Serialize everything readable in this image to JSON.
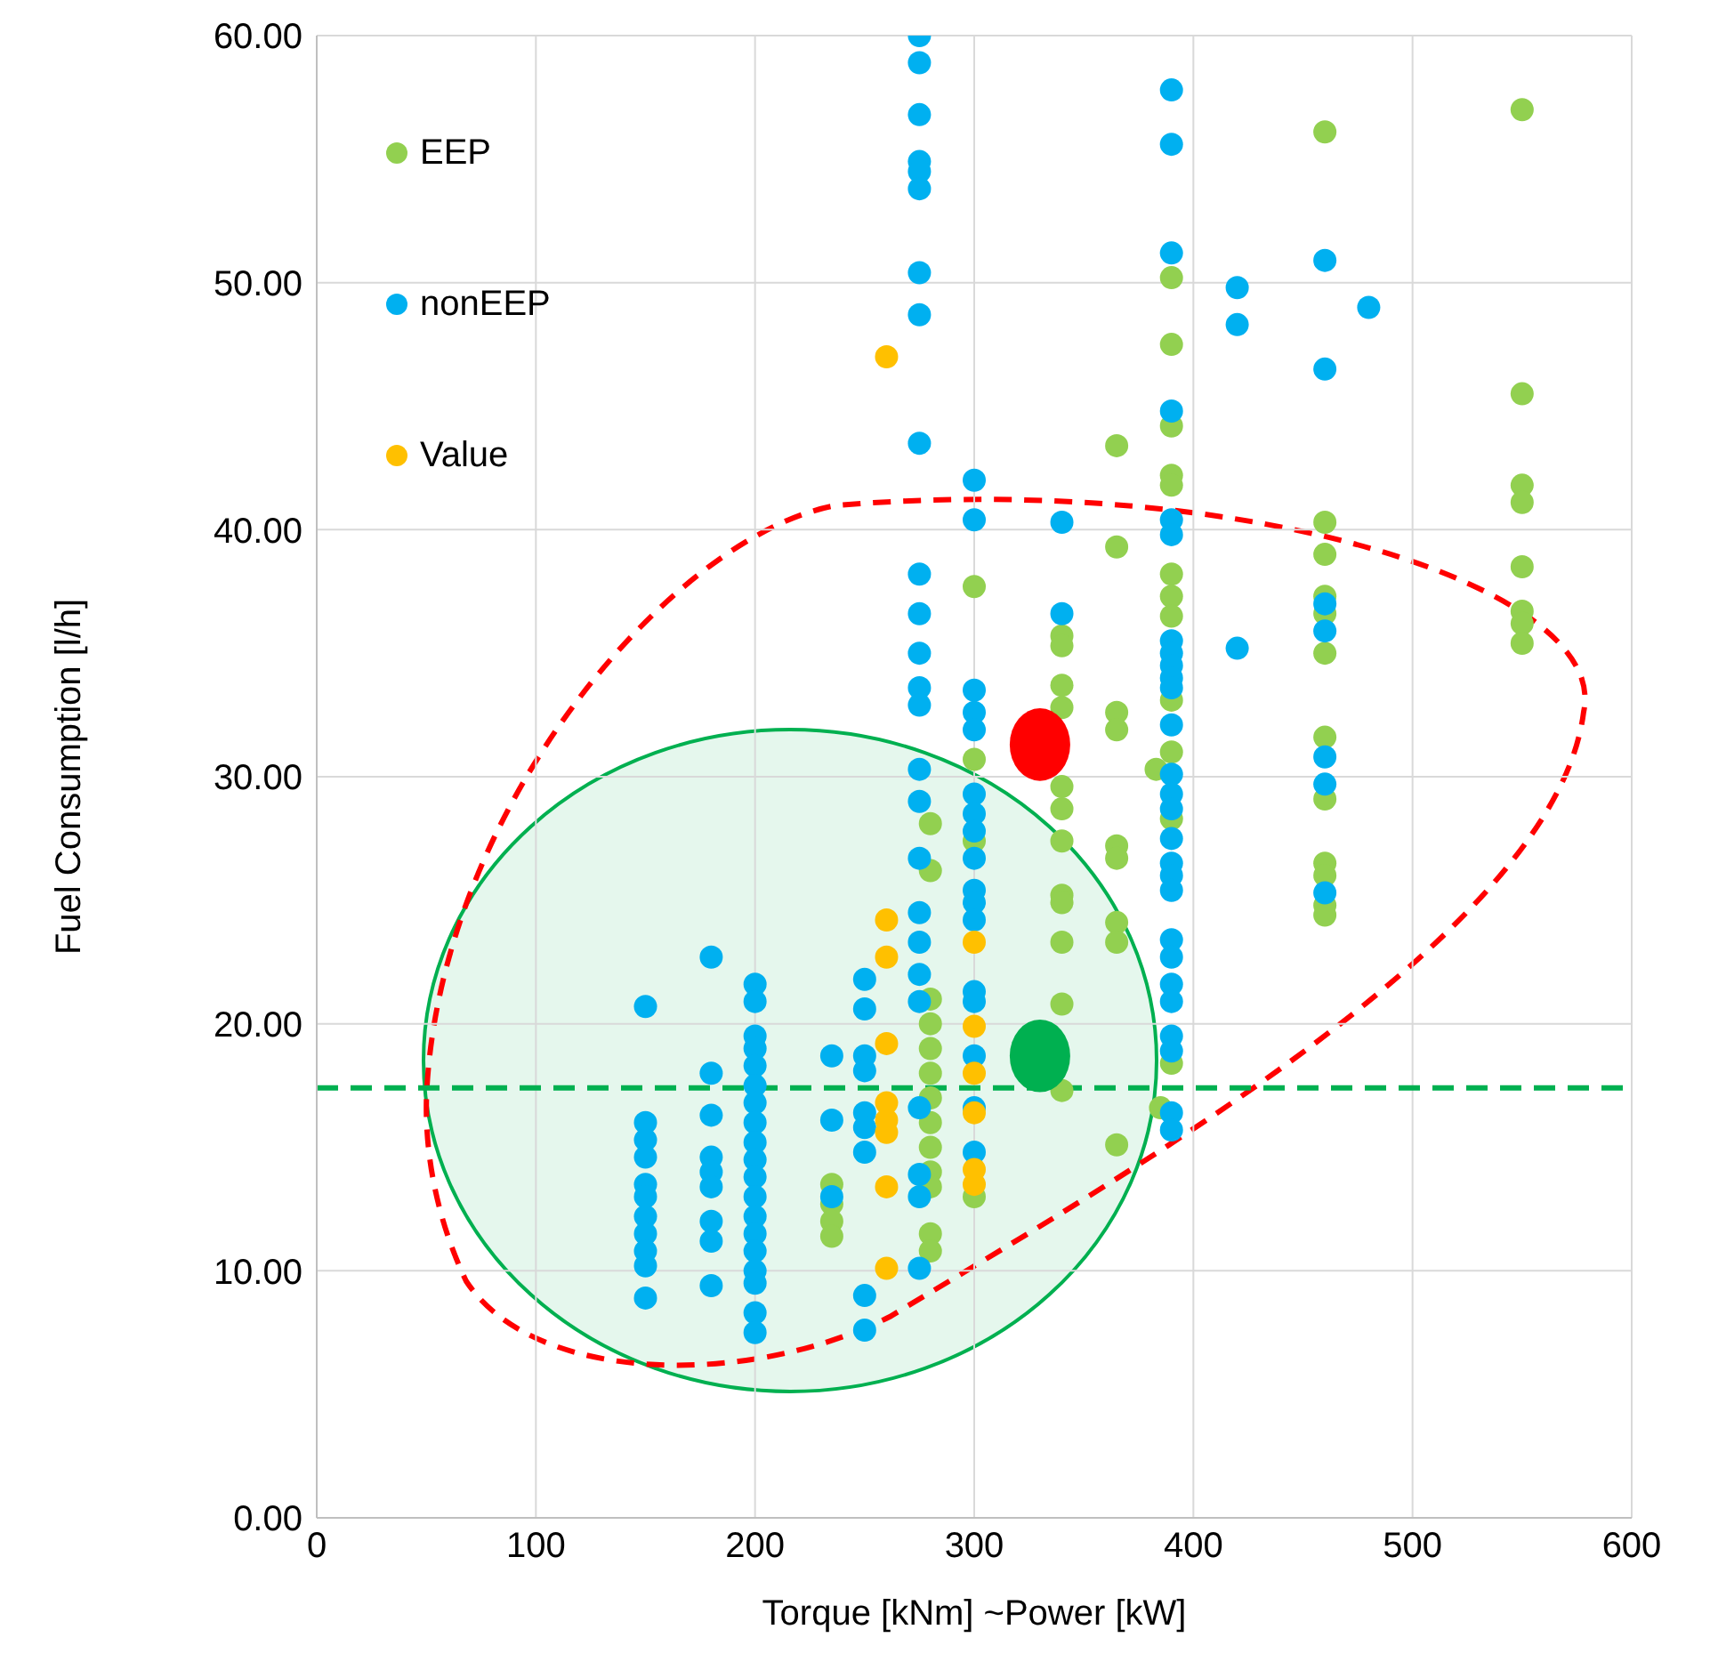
{
  "chart_data": {
    "type": "scatter",
    "xlabel": "Torque [kNm]   ~Power [kW]",
    "ylabel": "Fuel Consumption [l/h]",
    "xlim": [
      0,
      600
    ],
    "xticks": [
      0,
      100,
      200,
      300,
      400,
      500,
      600
    ],
    "ylim": [
      0,
      60
    ],
    "yticks": [
      {
        "value": 0,
        "label": "0.00"
      },
      {
        "value": 10,
        "label": "10.00"
      },
      {
        "value": 20,
        "label": "20.00"
      },
      {
        "value": 30,
        "label": "30.00"
      },
      {
        "value": 40,
        "label": "40.00"
      },
      {
        "value": 50,
        "label": "50.00"
      },
      {
        "value": 60,
        "label": "60.00"
      }
    ],
    "grid": true,
    "legend": "top left",
    "marker": "circle",
    "ref_lines": [
      {
        "axis": "y",
        "value": 17.4,
        "color": "#00b050",
        "line_style": "dashed"
      }
    ],
    "series": [
      {
        "name": "EEP",
        "color": "#92d050",
        "x": [
          235,
          235,
          235,
          235,
          280,
          280,
          280,
          280,
          280,
          280,
          280,
          280,
          280,
          280,
          280,
          280,
          280,
          300,
          300,
          300,
          300,
          340,
          340,
          340,
          340,
          340,
          340,
          340,
          340,
          340,
          340,
          340,
          340,
          365,
          365,
          365,
          365,
          365,
          365,
          365,
          365,
          365,
          390,
          390,
          390,
          390,
          390,
          390,
          390,
          390,
          390,
          390,
          390,
          390,
          383,
          385,
          460,
          460,
          460,
          460,
          460,
          460,
          460,
          460,
          460,
          460,
          460,
          460,
          550,
          550,
          550,
          550,
          550,
          550,
          550,
          550
        ],
        "values": [
          13.5,
          12.7,
          12.0,
          11.4,
          28.1,
          26.2,
          21,
          20,
          19,
          18,
          17,
          16,
          15,
          14,
          13.4,
          11.5,
          10.8,
          37.7,
          30.7,
          27.4,
          13.0,
          35.7,
          35.3,
          33.7,
          32.8,
          29.6,
          28.7,
          27.4,
          25.2,
          24.9,
          23.3,
          20.8,
          17.3,
          43.4,
          39.3,
          32.6,
          31.9,
          27.2,
          26.7,
          24.1,
          23.3,
          15.1,
          50.2,
          47.5,
          44.2,
          42.2,
          41.8,
          38.2,
          37.3,
          36.5,
          33.1,
          31.0,
          28.3,
          18.4,
          30.3,
          16.6,
          56.1,
          40.3,
          39.0,
          37.3,
          36.6,
          35.0,
          31.6,
          29.1,
          26.5,
          26.0,
          24.8,
          24.4,
          57.0,
          45.5,
          41.8,
          41.1,
          38.5,
          36.7,
          36.2,
          35.4
        ]
      },
      {
        "name": "nonEEP",
        "color": "#00b0f0",
        "x": [
          150,
          150,
          150,
          150,
          150,
          150,
          150,
          150,
          150,
          150,
          150,
          180,
          180,
          180,
          180,
          180,
          180,
          180,
          180,
          180,
          200,
          200,
          200,
          200,
          200,
          200,
          200,
          200,
          200,
          200,
          200,
          200,
          200,
          200,
          200,
          200,
          200,
          200,
          200,
          235,
          235,
          235,
          250,
          250,
          250,
          250,
          250,
          250,
          250,
          250,
          250,
          275,
          275,
          275,
          275,
          275,
          275,
          275,
          275,
          275,
          275,
          275,
          275,
          275,
          275,
          275,
          275,
          275,
          275,
          275,
          275,
          275,
          275,
          275,
          275,
          275,
          300,
          300,
          300,
          300,
          300,
          300,
          300,
          300,
          300,
          300,
          300,
          300,
          300,
          300,
          300,
          300,
          300,
          340,
          340,
          390,
          390,
          390,
          390,
          390,
          390,
          390,
          390,
          390,
          390,
          390,
          390,
          390,
          390,
          390,
          390,
          390,
          390,
          390,
          390,
          390,
          390,
          390,
          390,
          390,
          390,
          390,
          420,
          420,
          420,
          460,
          460,
          460,
          460,
          460,
          460,
          460,
          480
        ],
        "values": [
          20.7,
          16.0,
          15.3,
          14.6,
          13.5,
          13.0,
          12.2,
          11.5,
          10.8,
          10.2,
          8.9,
          22.7,
          18.0,
          16.3,
          14.6,
          14.0,
          13.4,
          12.0,
          11.2,
          9.4,
          21.6,
          20.9,
          19.5,
          19.0,
          18.3,
          17.5,
          16.8,
          16.0,
          15.2,
          14.5,
          13.8,
          13.0,
          12.2,
          11.5,
          10.8,
          10.0,
          9.5,
          8.3,
          7.5,
          18.7,
          16.1,
          13.0,
          21.8,
          20.6,
          18.7,
          18.1,
          16.4,
          15.8,
          14.8,
          9.0,
          7.6,
          60.0,
          58.9,
          56.8,
          54.9,
          54.5,
          53.8,
          50.4,
          48.7,
          43.5,
          38.2,
          36.6,
          35.0,
          33.6,
          32.9,
          30.3,
          29.0,
          26.7,
          24.5,
          23.3,
          22.0,
          20.9,
          16.6,
          13.9,
          13.0,
          10.1,
          42.0,
          40.4,
          33.5,
          32.6,
          31.9,
          29.3,
          28.5,
          27.8,
          26.7,
          25.4,
          24.9,
          24.2,
          21.3,
          20.9,
          18.7,
          16.6,
          14.8,
          40.3,
          36.6,
          57.8,
          55.6,
          51.2,
          44.8,
          40.4,
          39.8,
          35.5,
          35.0,
          34.5,
          34.0,
          33.6,
          32.1,
          30.1,
          29.3,
          28.7,
          27.5,
          26.5,
          26.0,
          25.4,
          23.4,
          22.7,
          21.6,
          20.9,
          19.5,
          18.9,
          16.4,
          15.7,
          49.8,
          48.3,
          35.2,
          50.9,
          46.5,
          37.0,
          35.9,
          30.8,
          29.7,
          25.3,
          49.0
        ]
      },
      {
        "name": "Value",
        "color": "#ffc000",
        "x": [
          260,
          260,
          260,
          260,
          260,
          260,
          260,
          260,
          260,
          300,
          300,
          300,
          300,
          300,
          300
        ],
        "values": [
          47.0,
          24.2,
          22.7,
          19.2,
          16.8,
          16.1,
          15.6,
          13.4,
          10.1,
          23.3,
          19.9,
          18.0,
          16.4,
          14.1,
          13.5
        ]
      },
      {
        "color": "#ff0000",
        "x": [
          330
        ],
        "values": [
          31.3
        ]
      },
      {
        "color": "#00b050",
        "x": [
          330
        ],
        "values": [
          18.7
        ]
      }
    ]
  }
}
